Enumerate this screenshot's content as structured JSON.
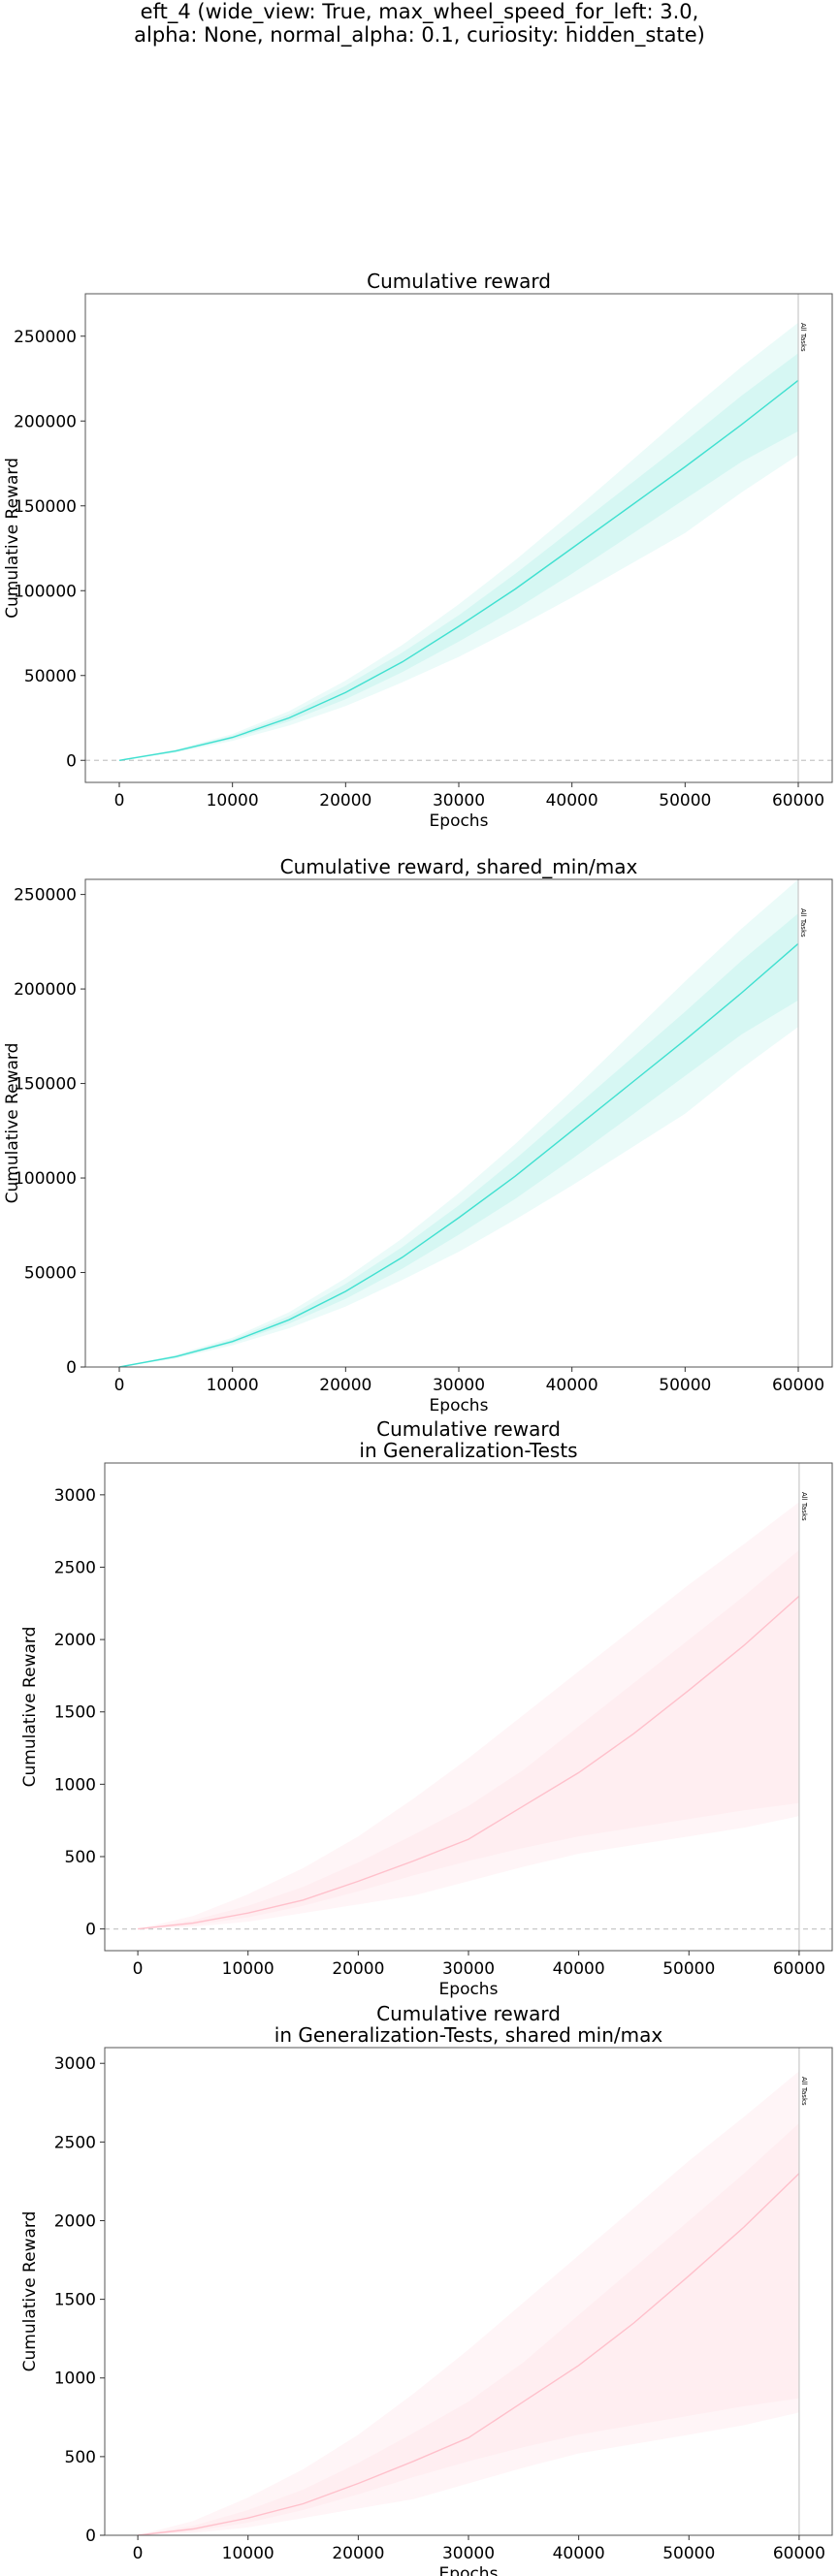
{
  "suptitle": {
    "line1": "eft_4 (wide_view: True, max_wheel_speed_for_left: 3.0,",
    "line2": "alpha: None, normal_alpha: 0.1, curiosity: hidden_state)"
  },
  "colors": {
    "reward_line": "#40e0d0",
    "reward_band": "#d6f7f3",
    "reward_band_light": "#ebfbf9",
    "gen_line": "#ffc0cb",
    "gen_band": "#ffeef1",
    "gen_band_light": "#fff5f7",
    "marker_line": "#c8c8c8",
    "zero_line": "#c8c8c8"
  },
  "chart_data": [
    {
      "type": "line",
      "title": [
        "Cumulative reward"
      ],
      "xlabel": "Epochs",
      "ylabel": "Cumulative Reward",
      "xlim": [
        -3000,
        63000
      ],
      "ylim": [
        -13000,
        275000
      ],
      "xticks": [
        0,
        10000,
        20000,
        30000,
        40000,
        50000,
        60000
      ],
      "yticks": [
        0,
        50000,
        100000,
        150000,
        200000,
        250000
      ],
      "zero_line": true,
      "vline": {
        "x": 60000,
        "label": "All Tasks"
      },
      "palette": "reward",
      "series": [
        {
          "x": [
            0,
            5000,
            10000,
            15000,
            20000,
            25000,
            30000,
            35000,
            40000,
            45000,
            50000,
            55000,
            60000
          ],
          "mean": [
            0,
            5500,
            13500,
            25000,
            40000,
            58000,
            79000,
            101000,
            125000,
            149000,
            173000,
            198000,
            224000
          ],
          "lower": [
            0,
            4500,
            11500,
            20500,
            32000,
            46000,
            61000,
            78000,
            96000,
            115000,
            134000,
            158000,
            180000
          ],
          "upper": [
            0,
            6500,
            15500,
            29000,
            47000,
            68000,
            92000,
            118000,
            146000,
            175000,
            204000,
            232000,
            258000
          ],
          "lower_inner": [
            0,
            5000,
            12500,
            23000,
            36000,
            52000,
            70000,
            89000,
            110000,
            132000,
            154000,
            176000,
            194000
          ],
          "upper_inner": [
            0,
            6000,
            14500,
            27000,
            44000,
            63500,
            85500,
            110000,
            136000,
            162000,
            188000,
            215000,
            240000
          ]
        }
      ]
    },
    {
      "type": "line",
      "title": [
        "Cumulative reward, shared_min/max"
      ],
      "xlabel": "Epochs",
      "ylabel": "Cumulative Reward",
      "xlim": [
        -3000,
        63000
      ],
      "ylim": [
        0,
        258000
      ],
      "xticks": [
        0,
        10000,
        20000,
        30000,
        40000,
        50000,
        60000
      ],
      "yticks": [
        0,
        50000,
        100000,
        150000,
        200000,
        250000
      ],
      "zero_line": false,
      "vline": {
        "x": 60000,
        "label": "All Tasks"
      },
      "palette": "reward",
      "series": [
        {
          "x": [
            0,
            5000,
            10000,
            15000,
            20000,
            25000,
            30000,
            35000,
            40000,
            45000,
            50000,
            55000,
            60000
          ],
          "mean": [
            0,
            5500,
            13500,
            25000,
            40000,
            58000,
            79000,
            101000,
            125000,
            149000,
            173000,
            198000,
            224000
          ],
          "lower": [
            0,
            4500,
            11500,
            20500,
            32000,
            46000,
            61000,
            78000,
            96000,
            115000,
            134000,
            158000,
            180000
          ],
          "upper": [
            0,
            6500,
            15500,
            29000,
            47000,
            68000,
            92000,
            118000,
            146000,
            175000,
            204000,
            232000,
            258000
          ],
          "lower_inner": [
            0,
            5000,
            12500,
            23000,
            36000,
            52000,
            70000,
            89000,
            110000,
            132000,
            154000,
            176000,
            194000
          ],
          "upper_inner": [
            0,
            6000,
            14500,
            27000,
            44000,
            63500,
            85500,
            110000,
            136000,
            162000,
            188000,
            215000,
            240000
          ]
        }
      ]
    },
    {
      "type": "line",
      "title": [
        "Cumulative reward",
        "in Generalization-Tests"
      ],
      "xlabel": "Epochs",
      "ylabel": "Cumulative Reward",
      "xlim": [
        -3000,
        63000
      ],
      "ylim": [
        -150,
        3220
      ],
      "xticks": [
        0,
        10000,
        20000,
        30000,
        40000,
        50000,
        60000
      ],
      "yticks": [
        0,
        500,
        1000,
        1500,
        2000,
        2500,
        3000
      ],
      "zero_line": true,
      "vline": {
        "x": 60000,
        "label": "All Tasks"
      },
      "palette": "gen",
      "series": [
        {
          "x": [
            0,
            5000,
            10000,
            15000,
            20000,
            25000,
            30000,
            35000,
            40000,
            45000,
            50000,
            55000,
            60000
          ],
          "mean": [
            0,
            40,
            110,
            200,
            330,
            470,
            620,
            850,
            1080,
            1350,
            1650,
            1960,
            2300
          ],
          "lower": [
            0,
            15,
            50,
            110,
            170,
            230,
            330,
            430,
            520,
            580,
            640,
            700,
            780
          ],
          "upper": [
            0,
            90,
            240,
            420,
            640,
            900,
            1180,
            1480,
            1780,
            2080,
            2380,
            2660,
            2950
          ],
          "lower_inner": [
            0,
            25,
            80,
            160,
            260,
            370,
            470,
            560,
            640,
            700,
            760,
            820,
            870
          ],
          "upper_inner": [
            0,
            60,
            160,
            290,
            460,
            650,
            850,
            1100,
            1400,
            1700,
            2000,
            2300,
            2620
          ]
        }
      ]
    },
    {
      "type": "line",
      "title": [
        "Cumulative reward",
        "in Generalization-Tests, shared min/max"
      ],
      "xlabel": "Epochs",
      "ylabel": "Cumulative Reward",
      "xlim": [
        -3000,
        63000
      ],
      "ylim": [
        0,
        3100
      ],
      "xticks": [
        0,
        10000,
        20000,
        30000,
        40000,
        50000,
        60000
      ],
      "yticks": [
        0,
        500,
        1000,
        1500,
        2000,
        2500,
        3000
      ],
      "zero_line": false,
      "vline": {
        "x": 60000,
        "label": "All Tasks"
      },
      "palette": "gen",
      "series": [
        {
          "x": [
            0,
            5000,
            10000,
            15000,
            20000,
            25000,
            30000,
            35000,
            40000,
            45000,
            50000,
            55000,
            60000
          ],
          "mean": [
            0,
            40,
            110,
            200,
            330,
            470,
            620,
            850,
            1080,
            1350,
            1650,
            1960,
            2300
          ],
          "lower": [
            0,
            15,
            50,
            110,
            170,
            230,
            330,
            430,
            520,
            580,
            640,
            700,
            780
          ],
          "upper": [
            0,
            90,
            240,
            420,
            640,
            900,
            1180,
            1480,
            1780,
            2080,
            2380,
            2660,
            2950
          ],
          "lower_inner": [
            0,
            25,
            80,
            160,
            260,
            370,
            470,
            560,
            640,
            700,
            760,
            820,
            870
          ],
          "upper_inner": [
            0,
            60,
            160,
            290,
            460,
            650,
            850,
            1100,
            1400,
            1700,
            2000,
            2300,
            2620
          ]
        }
      ]
    }
  ]
}
